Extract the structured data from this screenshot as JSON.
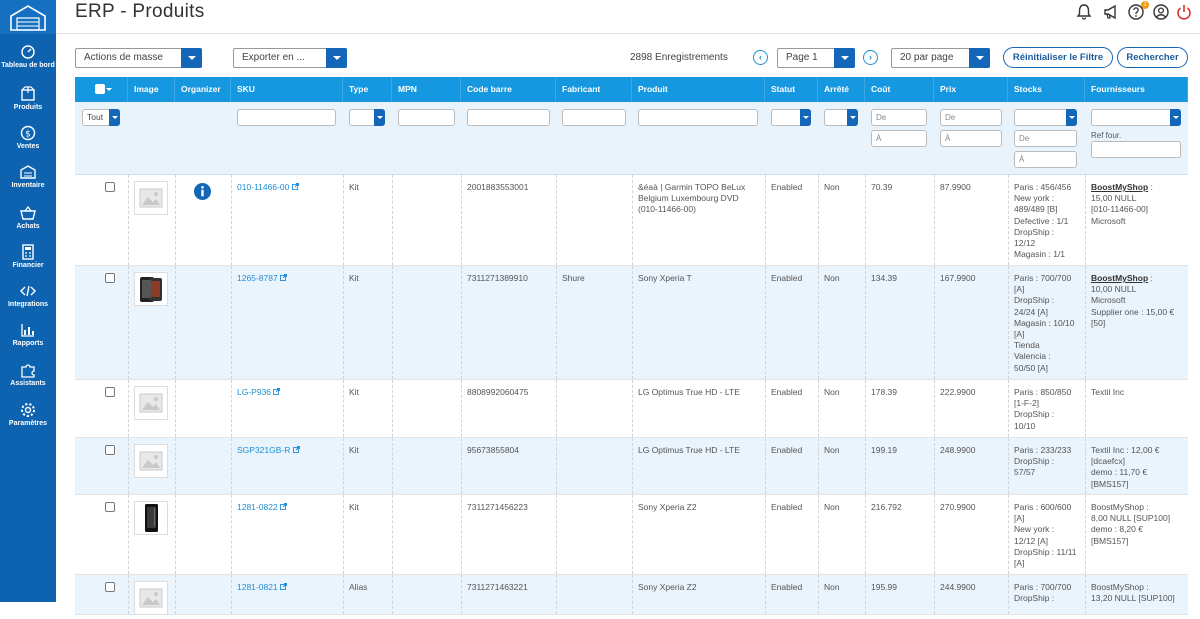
{
  "header": {
    "title": "ERP - Produits",
    "notification_count": "1"
  },
  "sidebar": [
    {
      "label": "Tableau de bord",
      "icon": "dashboard-icon"
    },
    {
      "label": "Produits",
      "icon": "box-icon"
    },
    {
      "label": "Ventes",
      "icon": "dollar-icon"
    },
    {
      "label": "Inventaire",
      "icon": "warehouse-icon"
    },
    {
      "label": "Achats",
      "icon": "basket-icon"
    },
    {
      "label": "Financier",
      "icon": "calculator-icon"
    },
    {
      "label": "Integrations",
      "icon": "code-icon"
    },
    {
      "label": "Rapports",
      "icon": "chart-icon"
    },
    {
      "label": "Assistants",
      "icon": "puzzle-icon"
    },
    {
      "label": "Paramètres",
      "icon": "gear-icon"
    }
  ],
  "toolbar": {
    "mass_actions": "Actions de masse",
    "export": "Exporter en ...",
    "records": "2898 Enregistrements",
    "page": "Page 1",
    "per_page": "20 par page",
    "reset": "Réinitialiser le Filtre",
    "search": "Rechercher"
  },
  "columns": [
    "Image",
    "Organizer",
    "SKU",
    "Type",
    "MPN",
    "Code barre",
    "Fabricant",
    "Produit",
    "Statut",
    "Arrêté",
    "Coût",
    "Prix",
    "Stocks",
    "Fournisseurs"
  ],
  "filters": {
    "all": "Tout",
    "from": "De",
    "to": "À",
    "ref_four": "Ref four."
  },
  "rows": [
    {
      "sku": "010-11466-00",
      "type": "Kit",
      "mpn": "",
      "barcode": "2001883553001",
      "maker": "",
      "product": "&éaà | Garmin TOPO BeLux Belgium Luxembourg DVD (010-11466-00)",
      "status": "Enabled",
      "stopped": "Non",
      "cost": "70.39",
      "price": "87.9900",
      "stocks": [
        "Paris : 456/456",
        "New york :",
        "489/489 [B]",
        "Defective : 1/1",
        "DropShip :",
        "12/12",
        "Magasin : 1/1"
      ],
      "supplier_name": "BoostMyShop",
      "supplier_sep": " :",
      "suppliers": [
        "15,00 NULL",
        "[010-11466-00]",
        "Microsoft"
      ]
    },
    {
      "sku": "1265-8787",
      "type": "Kit",
      "mpn": "",
      "barcode": "7311271389910",
      "maker": "Shure",
      "product": "Sony Xperia T",
      "status": "Enabled",
      "stopped": "Non",
      "cost": "134.39",
      "price": "167.9900",
      "stocks": [
        "Paris : 700/700",
        "[A]",
        "DropShip :",
        "24/24 [A]",
        "Magasin : 10/10",
        "[A]",
        "Tienda",
        "Valencia :",
        "50/50 [A]"
      ],
      "supplier_name": "BoostMyShop",
      "supplier_sep": " :",
      "suppliers": [
        "10,00 NULL",
        "Microsoft",
        "Supplier one : 15,00 €",
        "[50]"
      ]
    },
    {
      "sku": "LG-P936",
      "type": "Kit",
      "mpn": "",
      "barcode": "8808992060475",
      "maker": "",
      "product": "LG Optimus True HD - LTE",
      "status": "Enabled",
      "stopped": "Non",
      "cost": "178.39",
      "price": "222.9900",
      "stocks": [
        "Paris : 850/850",
        "[1-F-2]",
        "DropShip :",
        "10/10"
      ],
      "supplier_name": "",
      "supplier_sep": "",
      "suppliers": [
        "Textil Inc"
      ]
    },
    {
      "sku": "SGP321GB-R",
      "type": "Kit",
      "mpn": "",
      "barcode": "95673855804",
      "maker": "",
      "product": "LG Optimus True HD - LTE",
      "status": "Enabled",
      "stopped": "Non",
      "cost": "199.19",
      "price": "248.9900",
      "stocks": [
        "Paris : 233/233",
        "DropShip :",
        "57/57"
      ],
      "supplier_name": "",
      "supplier_sep": "",
      "suppliers": [
        "Textil Inc : 12,00 €",
        "[dcaefcx]",
        "demo : 11,70 €",
        "[BMS157]"
      ]
    },
    {
      "sku": "1281-0822",
      "type": "Kit",
      "mpn": "",
      "barcode": "7311271456223",
      "maker": "",
      "product": "Sony Xperia Z2",
      "status": "Enabled",
      "stopped": "Non",
      "cost": "216.792",
      "price": "270.9900",
      "stocks": [
        "Paris : 600/600",
        "[A]",
        "New york :",
        "12/12 [A]",
        "DropShip : 11/11",
        "[A]"
      ],
      "supplier_name": "",
      "supplier_sep": "",
      "suppliers": [
        "BoostMyShop :",
        "8,00 NULL [SUP100]",
        "demo : 8,20 €",
        "[BMS157]"
      ]
    },
    {
      "sku": "1281-0821",
      "type": "Alias",
      "mpn": "",
      "barcode": "7311271463221",
      "maker": "",
      "product": "Sony Xperia Z2",
      "status": "Enabled",
      "stopped": "Non",
      "cost": "195.99",
      "price": "244.9900",
      "stocks": [
        "Paris : 700/700",
        "DropShip :"
      ],
      "supplier_name": "",
      "supplier_sep": "",
      "suppliers": [
        "BoostMyShop :",
        "13,20 NULL [SUP100]"
      ]
    }
  ]
}
